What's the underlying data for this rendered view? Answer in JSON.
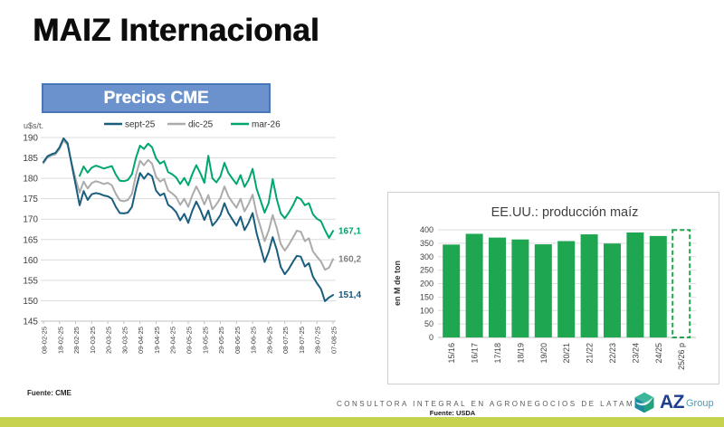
{
  "page": {
    "title": "MAIZ Internacional",
    "footer": {
      "source_left": "Fuente: CME",
      "consultora": "CONSULTORA INTEGRAL EN AGRONEGOCIOS DE LATAM",
      "source_right": "Fuente: USDA",
      "logo_az": "AZ",
      "logo_group": "Group"
    },
    "colors": {
      "banner_bg": "#6B92CC",
      "banner_border": "#4876B8",
      "bottom_band": "#C6D34F",
      "logo_az": "#1E3E8F",
      "logo_group": "#3BA4C4"
    }
  },
  "price_chart": {
    "banner": "Precios CME"
  },
  "chart_data": [
    {
      "type": "line",
      "title": "Precios CME",
      "ylabel": "u$s/t.",
      "ylim": [
        145,
        190
      ],
      "ytick_step": 5,
      "grid": true,
      "legend_position": "top",
      "x_ticklabels": [
        "08-02-25",
        "18-02-25",
        "28-02-25",
        "10-03-25",
        "20-03-25",
        "30-03-25",
        "09-04-25",
        "19-04-25",
        "29-04-25",
        "09-05-25",
        "19-05-25",
        "29-05-25",
        "08-06-25",
        "18-06-25",
        "28-06-25",
        "08-07-25",
        "18-07-25",
        "28-07-25",
        "07-08-25"
      ],
      "series": [
        {
          "name": "mar-26",
          "color": "#00A76D",
          "end_label": "167,1",
          "label_color": "#00A467",
          "values": [
            null,
            null,
            null,
            null,
            null,
            null,
            null,
            null,
            null,
            180.6,
            182.9,
            181.4,
            182.6,
            183.1,
            182.8,
            182.4,
            182.7,
            183.0,
            180.9,
            179.4,
            179.3,
            179.6,
            181.0,
            185.0,
            188.0,
            187.2,
            188.5,
            187.6,
            184.9,
            183.6,
            184.2,
            181.5,
            181.0,
            180.2,
            178.6,
            180.1,
            178.3,
            181.0,
            183.2,
            181.3,
            178.9,
            185.5,
            180.0,
            179.0,
            180.5,
            183.8,
            181.3,
            179.9,
            178.6,
            180.8,
            177.9,
            179.6,
            182.3,
            177.4,
            174.5,
            171.6,
            174.0,
            179.8,
            174.9,
            171.4,
            170.2,
            171.6,
            173.3,
            175.4,
            174.9,
            173.4,
            173.9,
            171.2,
            170.1,
            169.5,
            167.3,
            165.4,
            167.1
          ]
        },
        {
          "name": "dic-25",
          "color": "#ABABAB",
          "end_label": "160,2",
          "label_color": "#7F7F7F",
          "values": [
            183.7,
            185.1,
            185.6,
            185.9,
            187.2,
            189.3,
            188.2,
            183.8,
            179.8,
            176.5,
            179.2,
            177.5,
            178.8,
            179.3,
            179.0,
            178.6,
            178.9,
            178.3,
            176.2,
            174.6,
            174.4,
            174.7,
            176.2,
            180.8,
            184.3,
            183.2,
            184.5,
            183.6,
            180.4,
            179.2,
            179.8,
            177.0,
            176.3,
            175.4,
            173.5,
            175.0,
            173.0,
            175.8,
            178.0,
            176.1,
            173.6,
            175.9,
            172.4,
            173.6,
            175.2,
            178.0,
            175.6,
            174.1,
            172.8,
            175.0,
            171.9,
            173.7,
            176.0,
            171.2,
            168.0,
            164.6,
            167.2,
            171.0,
            167.8,
            163.9,
            162.3,
            163.7,
            165.4,
            167.2,
            166.9,
            164.6,
            165.3,
            162.1,
            160.8,
            159.6,
            157.6,
            158.1,
            160.2
          ]
        },
        {
          "name": "sept-25",
          "color": "#1A5E7E",
          "end_label": "151,4",
          "label_color": "#17567A",
          "values": [
            184.0,
            185.4,
            185.9,
            186.2,
            187.6,
            189.8,
            188.6,
            183.5,
            178.4,
            173.4,
            176.9,
            174.7,
            176.1,
            176.4,
            176.2,
            175.8,
            175.6,
            175.0,
            173.0,
            171.5,
            171.4,
            171.6,
            173.0,
            177.5,
            181.3,
            179.9,
            181.2,
            180.5,
            177.0,
            175.8,
            176.3,
            173.5,
            172.8,
            171.7,
            169.7,
            171.3,
            169.1,
            172.0,
            174.3,
            172.3,
            169.8,
            172.1,
            168.4,
            169.5,
            171.0,
            173.9,
            171.5,
            169.9,
            168.4,
            170.6,
            167.3,
            169.1,
            171.5,
            166.5,
            163.0,
            159.5,
            162.0,
            165.6,
            162.5,
            158.3,
            156.5,
            157.8,
            159.5,
            161.0,
            160.8,
            158.4,
            159.2,
            155.9,
            154.3,
            152.9,
            149.9,
            150.8,
            151.4
          ]
        }
      ],
      "legend_order": [
        "sept-25",
        "dic-25",
        "mar-26"
      ]
    },
    {
      "type": "bar",
      "title": "EE.UU.: producción maíz",
      "ylabel": "en M de ton",
      "ylim": [
        0,
        400
      ],
      "ytick_step": 50,
      "grid": true,
      "bar_color": "#1FA650",
      "categories": [
        "15/16",
        "16/17",
        "17/18",
        "18/19",
        "19/20",
        "20/21",
        "21/22",
        "22/23",
        "23/24",
        "24/25",
        "25/26 p"
      ],
      "values": [
        345,
        385,
        371,
        364,
        346,
        358,
        383,
        349,
        390,
        377,
        399
      ],
      "projected_last": true
    }
  ]
}
